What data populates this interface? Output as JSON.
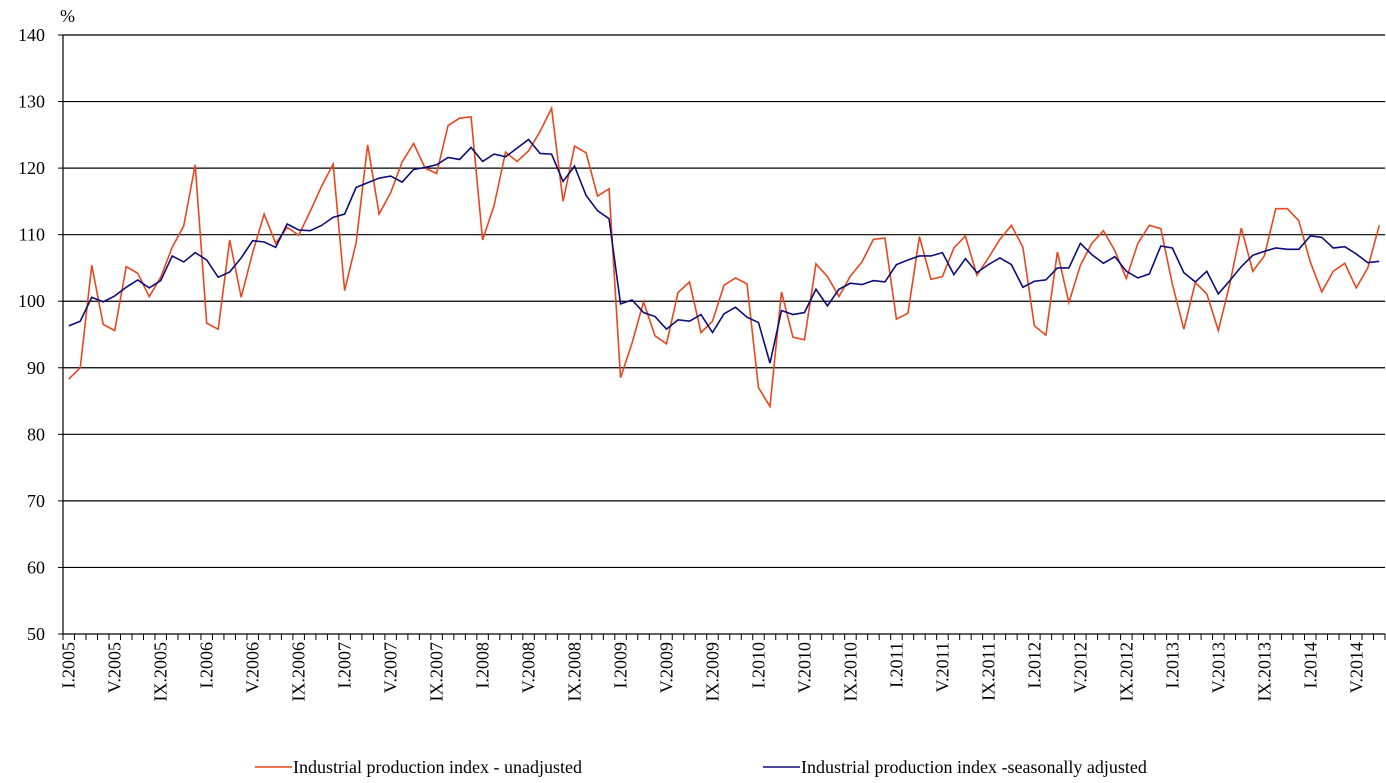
{
  "chart_data": {
    "type": "line",
    "y_unit": "%",
    "categories": [
      "I.2005",
      null,
      null,
      null,
      "V.2005",
      null,
      null,
      null,
      "IX.2005",
      null,
      null,
      null,
      "I.2006",
      null,
      null,
      null,
      "V.2006",
      null,
      null,
      null,
      "IX.2006",
      null,
      null,
      null,
      "I.2007",
      null,
      null,
      null,
      "V.2007",
      null,
      null,
      null,
      "IX.2007",
      null,
      null,
      null,
      "I.2008",
      null,
      null,
      null,
      "V.2008",
      null,
      null,
      null,
      "IX.2008",
      null,
      null,
      null,
      "I.2009",
      null,
      null,
      null,
      "V.2009",
      null,
      null,
      null,
      "IX.2009",
      null,
      null,
      null,
      "I.2010",
      null,
      null,
      null,
      "V.2010",
      null,
      null,
      null,
      "IX.2010",
      null,
      null,
      null,
      "I.2011",
      null,
      null,
      null,
      "V.2011",
      null,
      null,
      null,
      "IX.2011",
      null,
      null,
      null,
      "I.2012",
      null,
      null,
      null,
      "V.2012",
      null,
      null,
      null,
      "IX.2012",
      null,
      null,
      null,
      "I.2013",
      null,
      null,
      null,
      "V.2013",
      null,
      null,
      null,
      "IX.2013",
      null,
      null,
      null,
      "I.2014",
      null,
      null,
      null,
      "V.2014",
      null,
      null
    ],
    "series": [
      {
        "name": "Industrial production index - unadjusted",
        "color": "#e8471e",
        "values": [
          88.3,
          90,
          105.4,
          96.5,
          95.6,
          105.2,
          104.2,
          100.7,
          103.6,
          108.1,
          111.3,
          120.5,
          96.7,
          95.8,
          109.2,
          100.6,
          107.3,
          113.1,
          108.7,
          111.1,
          109.9,
          113.5,
          117.3,
          120.6,
          101.6,
          108.8,
          123.5,
          113.1,
          116.3,
          120.9,
          123.7,
          120,
          119.2,
          126.4,
          127.5,
          127.7,
          109.2,
          114.4,
          122.4,
          121,
          122.6,
          125.5,
          129,
          115,
          123.3,
          122.3,
          115.8,
          116.9,
          88.5,
          93.7,
          99.9,
          94.8,
          93.6,
          101.3,
          102.9,
          95.3,
          97,
          102.4,
          103.5,
          102.6,
          87,
          84.2,
          101.4,
          94.6,
          94.2,
          105.6,
          103.7,
          100.7,
          103.8,
          105.9,
          109.3,
          109.5,
          97.3,
          98.2,
          109.7,
          103.3,
          103.7,
          108,
          109.8,
          103.9,
          106.5,
          109.3,
          111.4,
          108.1,
          96.3,
          94.9,
          107.4,
          99.8,
          105.4,
          108.7,
          110.6,
          107.6,
          103.4,
          108.7,
          111.4,
          110.9,
          102.6,
          95.8,
          102.8,
          101.1,
          95.6,
          102.6,
          111,
          104.5,
          106.8,
          113.9,
          113.9,
          112.1,
          105.9,
          101.4,
          104.5,
          105.7,
          102,
          105,
          111.4
        ]
      },
      {
        "name": "Industrial production index -seasonally adjusted",
        "color": "#0d0d78",
        "values": [
          96.3,
          97,
          100.6,
          99.9,
          100.8,
          102.1,
          103.2,
          102,
          103.1,
          106.8,
          105.9,
          107.3,
          106.2,
          103.6,
          104.4,
          106.5,
          109.1,
          108.9,
          108.1,
          111.6,
          110.7,
          110.6,
          111.4,
          112.6,
          113.1,
          117.1,
          117.8,
          118.5,
          118.8,
          117.9,
          119.8,
          120.1,
          120.5,
          121.6,
          121.3,
          123.1,
          121,
          122.1,
          121.7,
          123,
          124.3,
          122.2,
          122.1,
          118,
          120.3,
          115.9,
          113.6,
          112.4,
          99.6,
          100.2,
          98.3,
          97.7,
          95.8,
          97.2,
          97,
          98,
          95.3,
          98.1,
          99.1,
          97.6,
          96.8,
          90.7,
          98.6,
          98,
          98.3,
          101.8,
          99.3,
          101.8,
          102.7,
          102.5,
          103.1,
          102.9,
          105.5,
          106.2,
          106.8,
          106.8,
          107.3,
          104,
          106.4,
          104.3,
          105.5,
          106.5,
          105.5,
          102.1,
          103,
          103.2,
          105,
          105,
          108.7,
          107,
          105.7,
          106.7,
          104.5,
          103.5,
          104.1,
          108.3,
          108,
          104.3,
          102.9,
          104.5,
          101.1,
          103.1,
          105.2,
          106.9,
          107.5,
          108,
          107.8,
          107.8,
          109.8,
          109.6,
          108,
          108.2,
          107.1,
          105.8,
          106
        ]
      }
    ],
    "ylim": [
      50,
      140
    ],
    "yticks": [
      50,
      60,
      70,
      80,
      90,
      100,
      110,
      120,
      130,
      140
    ],
    "grid": true,
    "legend": "bottom"
  }
}
